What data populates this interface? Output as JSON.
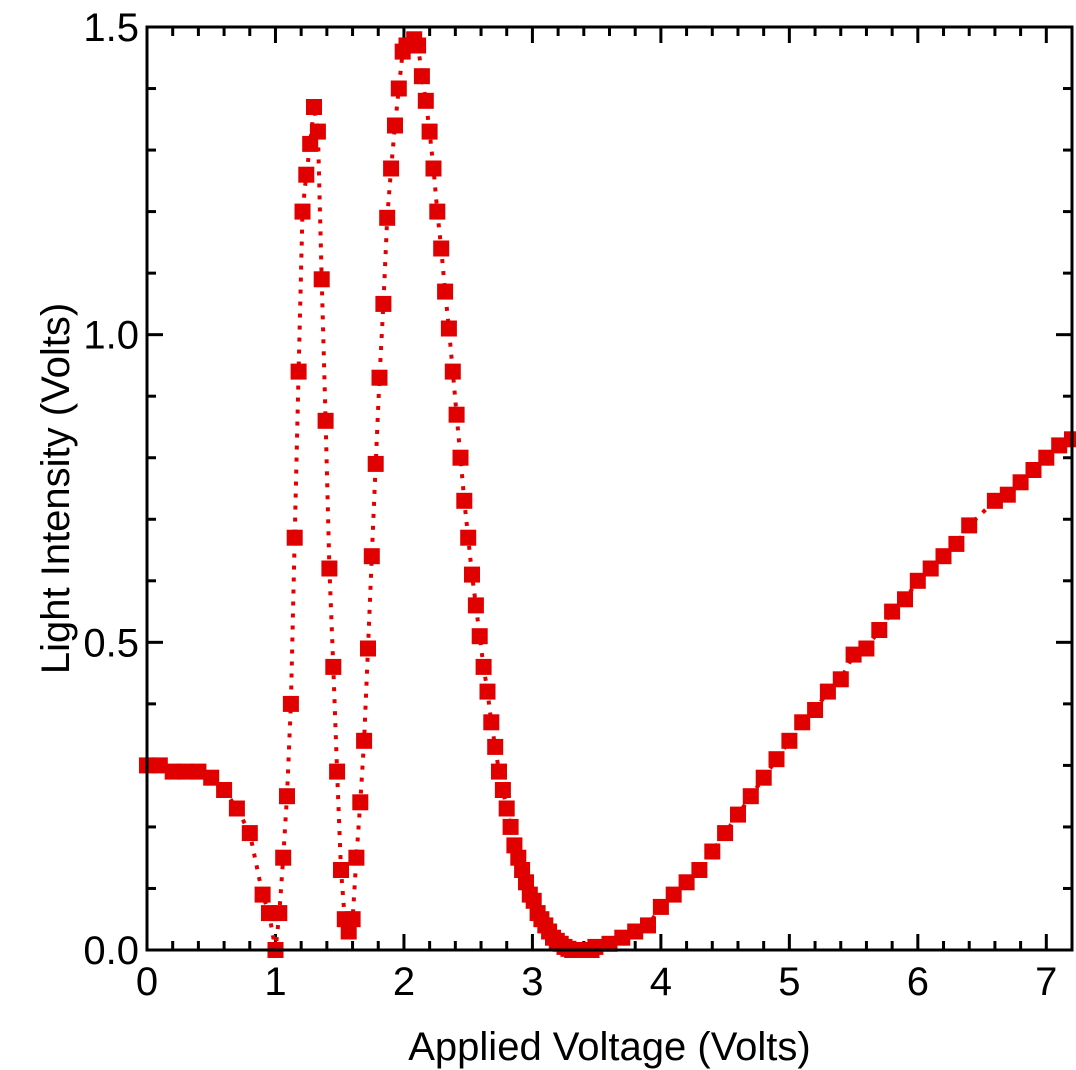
{
  "chart_data": {
    "type": "scatter",
    "title": "",
    "xlabel": "Applied Voltage (Volts)",
    "ylabel": "Light Intensity (Volts)",
    "xlim": [
      0,
      7.2
    ],
    "ylim": [
      0,
      1.5
    ],
    "x_ticks": [
      0,
      1,
      2,
      3,
      4,
      5,
      6,
      7
    ],
    "x_tick_labels": [
      "0",
      "1",
      "2",
      "3",
      "4",
      "5",
      "6",
      "7"
    ],
    "y_ticks": [
      0,
      0.5,
      1.0,
      1.5
    ],
    "y_tick_labels": [
      "0.0",
      "0.5",
      "1.0",
      "1.5"
    ],
    "x_minor_step": 0.2,
    "y_minor_step": 0.1,
    "grid": false,
    "marker": "square",
    "line_style": "dotted",
    "color": "#e00000",
    "series": [
      {
        "x": [
          0.0,
          0.1,
          0.2,
          0.3,
          0.4,
          0.5,
          0.6,
          0.7,
          0.8,
          0.9,
          0.95,
          1.0,
          1.03,
          1.06,
          1.09,
          1.12,
          1.15,
          1.18,
          1.21,
          1.24,
          1.27,
          1.3,
          1.33,
          1.36,
          1.39,
          1.42,
          1.45,
          1.48,
          1.51,
          1.54,
          1.57,
          1.6,
          1.63,
          1.66,
          1.69,
          1.72,
          1.75,
          1.78,
          1.81,
          1.84,
          1.87,
          1.9,
          1.93,
          1.96,
          1.99,
          2.02,
          2.05,
          2.08,
          2.11,
          2.14,
          2.17,
          2.2,
          2.23,
          2.26,
          2.29,
          2.32,
          2.35,
          2.38,
          2.41,
          2.44,
          2.47,
          2.5,
          2.53,
          2.56,
          2.59,
          2.62,
          2.65,
          2.68,
          2.71,
          2.74,
          2.77,
          2.8,
          2.83,
          2.86,
          2.89,
          2.92,
          2.95,
          2.98,
          3.01,
          3.04,
          3.07,
          3.1,
          3.13,
          3.16,
          3.19,
          3.22,
          3.25,
          3.28,
          3.31,
          3.34,
          3.37,
          3.4,
          3.43,
          3.46,
          3.49,
          3.6,
          3.7,
          3.8,
          3.9,
          4.0,
          4.1,
          4.2,
          4.3,
          4.4,
          4.5,
          4.6,
          4.7,
          4.8,
          4.9,
          5.0,
          5.1,
          5.2,
          5.3,
          5.4,
          5.5,
          5.6,
          5.7,
          5.8,
          5.9,
          6.0,
          6.1,
          6.2,
          6.3,
          6.4,
          6.6,
          6.7,
          6.8,
          6.9,
          7.0,
          7.1,
          7.2
        ],
        "y": [
          0.3,
          0.3,
          0.29,
          0.29,
          0.29,
          0.28,
          0.26,
          0.23,
          0.19,
          0.09,
          0.06,
          0.0,
          0.06,
          0.15,
          0.25,
          0.4,
          0.67,
          0.94,
          1.2,
          1.26,
          1.31,
          1.37,
          1.33,
          1.09,
          0.86,
          0.62,
          0.46,
          0.29,
          0.13,
          0.05,
          0.03,
          0.05,
          0.15,
          0.24,
          0.34,
          0.49,
          0.64,
          0.79,
          0.93,
          1.05,
          1.19,
          1.27,
          1.34,
          1.4,
          1.46,
          1.47,
          1.47,
          1.48,
          1.47,
          1.42,
          1.38,
          1.33,
          1.27,
          1.2,
          1.14,
          1.07,
          1.01,
          0.94,
          0.87,
          0.8,
          0.73,
          0.67,
          0.61,
          0.56,
          0.51,
          0.46,
          0.42,
          0.37,
          0.33,
          0.29,
          0.26,
          0.23,
          0.2,
          0.17,
          0.15,
          0.13,
          0.11,
          0.09,
          0.08,
          0.06,
          0.05,
          0.04,
          0.03,
          0.02,
          0.015,
          0.01,
          0.005,
          0.002,
          0.0,
          0.0,
          0.0,
          0.0,
          0.0,
          0.0,
          0.005,
          0.01,
          0.02,
          0.03,
          0.04,
          0.07,
          0.09,
          0.11,
          0.13,
          0.16,
          0.19,
          0.22,
          0.25,
          0.28,
          0.31,
          0.34,
          0.37,
          0.39,
          0.42,
          0.44,
          0.48,
          0.49,
          0.52,
          0.55,
          0.57,
          0.6,
          0.62,
          0.64,
          0.66,
          0.69,
          0.73,
          0.74,
          0.76,
          0.78,
          0.8,
          0.82,
          0.83
        ]
      }
    ]
  }
}
